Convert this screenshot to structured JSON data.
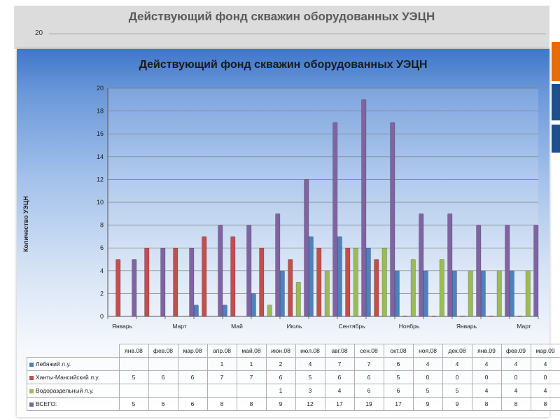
{
  "background": {
    "title": "Действующий фонд скважин оборудованных УЭЦН",
    "tick": "20"
  },
  "chart_data": {
    "type": "bar",
    "title": "Действующий фонд скважин оборудованных УЭЦН",
    "ylabel": "Количество УЭЦН",
    "ylim": [
      0,
      20
    ],
    "yticks": [
      "0",
      "2",
      "4",
      "6",
      "8",
      "10",
      "12",
      "14",
      "16",
      "18",
      "20"
    ],
    "grid": true,
    "x_axis_labels": [
      "Январь",
      "",
      "Март",
      "",
      "Май",
      "",
      "Июль",
      "",
      "Сентябрь",
      "",
      "Ноябрь",
      "",
      "Январь",
      "",
      "Март"
    ],
    "categories": [
      "янв.08",
      "фев.08",
      "мар.08",
      "апр.08",
      "май.08",
      "июн.08",
      "июл.08",
      "авг.08",
      "сен.08",
      "окт.08",
      "ноя.08",
      "дек.08",
      "янв.09",
      "фев.09",
      "мар.09"
    ],
    "series": [
      {
        "name": "Лебяжий л.у.",
        "color": "#4f81bd",
        "values": [
          null,
          null,
          null,
          1,
          1,
          2,
          4,
          7,
          7,
          6,
          4,
          4,
          4,
          4,
          4
        ],
        "table": [
          "",
          "",
          "",
          "1",
          "1",
          "2",
          "4",
          "7",
          "7",
          "6",
          "4",
          "4",
          "4",
          "4",
          "4"
        ]
      },
      {
        "name": "Ханты-Мансийский л.у.",
        "color": "#c0504d",
        "values": [
          5,
          6,
          6,
          7,
          7,
          6,
          5,
          6,
          6,
          5,
          0,
          0,
          0,
          0,
          0
        ],
        "table": [
          "5",
          "6",
          "6",
          "7",
          "7",
          "6",
          "5",
          "6",
          "6",
          "5",
          "0",
          "0",
          "0",
          "0",
          "0"
        ]
      },
      {
        "name": "Водораздельный л.у.",
        "color": "#9bbb59",
        "values": [
          null,
          null,
          null,
          null,
          null,
          1,
          3,
          4,
          6,
          6,
          5,
          5,
          4,
          4,
          4
        ],
        "table": [
          "",
          "",
          "",
          "",
          "",
          "1",
          "3",
          "4",
          "6",
          "6",
          "5",
          "5",
          "4",
          "4",
          "4"
        ]
      },
      {
        "name": "ВСЕГО:",
        "color": "#8064a2",
        "values": [
          5,
          6,
          6,
          8,
          8,
          9,
          12,
          17,
          19,
          17,
          9,
          9,
          8,
          8,
          8
        ],
        "table": [
          "5",
          "6",
          "6",
          "8",
          "8",
          "9",
          "12",
          "17",
          "19",
          "17",
          "9",
          "9",
          "8",
          "8",
          "8"
        ]
      }
    ]
  }
}
